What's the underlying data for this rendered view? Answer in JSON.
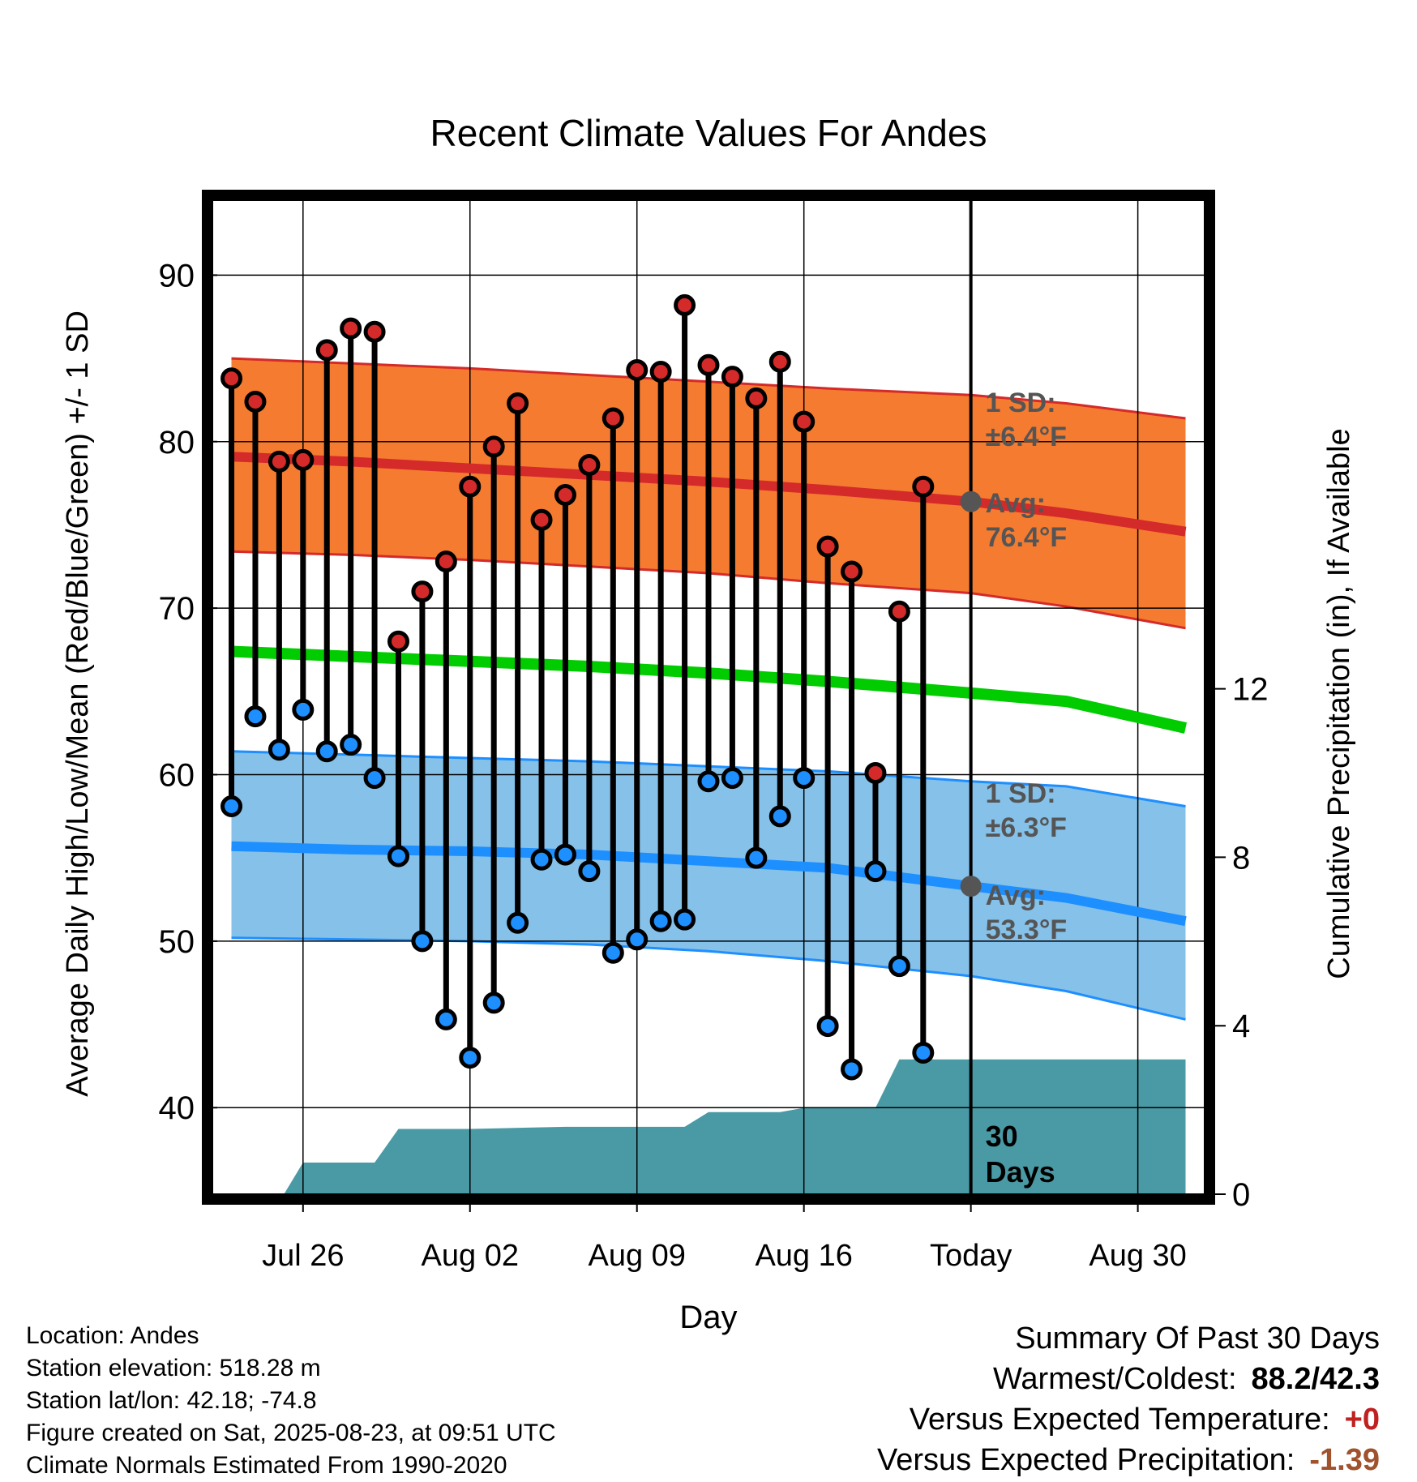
{
  "chart_data": {
    "type": "line",
    "title": "Recent Climate Values For Andes",
    "xlabel": "Day",
    "ylabel_left": "Average Daily High/Low/Mean (Red/Blue/Green) +/- 1 SD",
    "ylabel_right": "Cumulative Precipitation (in), If Available",
    "x_tick_labels": [
      "Jul 26",
      "Aug 02",
      "Aug 09",
      "Aug 16",
      "Today",
      "Aug 30"
    ],
    "x_tick_days": [
      3,
      10,
      17,
      24,
      31,
      38
    ],
    "today_day": 31,
    "xlim_days": [
      -0.8,
      40.8
    ],
    "y_left_ticks": [
      40,
      50,
      60,
      70,
      80,
      90
    ],
    "y_left_range": [
      34.8,
      94.5
    ],
    "y_right_ticks": [
      0,
      4,
      8,
      12
    ],
    "y_right_range": [
      0,
      23.6
    ],
    "grid": true,
    "colors": {
      "high_band": "#f47b30",
      "high_line": "#d42a2a",
      "low_band": "#85c1e9",
      "low_line": "#1e8fff",
      "mean_line": "#00cc00",
      "precip_fill": "#4a9aa5",
      "high_marker": "#d42a2a",
      "low_marker": "#1e8fff",
      "today_marker": "#555555",
      "annotation_text": "#555555"
    },
    "normals_days": [
      0,
      5,
      10,
      15,
      20,
      25,
      31,
      35,
      40
    ],
    "normal_high": [
      79.1,
      78.8,
      78.4,
      78.0,
      77.6,
      77.1,
      76.4,
      75.7,
      74.6
    ],
    "normal_high_upper": [
      85.0,
      84.7,
      84.4,
      84.0,
      83.6,
      83.2,
      82.8,
      82.3,
      81.4
    ],
    "normal_high_lower": [
      73.4,
      73.2,
      72.9,
      72.5,
      72.1,
      71.5,
      70.9,
      70.1,
      68.8
    ],
    "normal_mean": [
      67.4,
      67.1,
      66.8,
      66.5,
      66.1,
      65.6,
      64.9,
      64.4,
      62.8
    ],
    "normal_low": [
      55.7,
      55.5,
      55.4,
      55.2,
      54.8,
      54.4,
      53.3,
      52.6,
      51.2
    ],
    "normal_low_upper": [
      61.4,
      61.2,
      61.0,
      60.8,
      60.5,
      60.2,
      59.6,
      59.3,
      58.1
    ],
    "normal_low_lower": [
      50.2,
      50.1,
      50.0,
      49.8,
      49.4,
      48.8,
      47.9,
      47.0,
      45.3
    ],
    "observations": [
      {
        "day": 0,
        "high": 83.8,
        "low": 58.1
      },
      {
        "day": 1,
        "high": 82.4,
        "low": 63.5
      },
      {
        "day": 2,
        "high": 78.8,
        "low": 61.5
      },
      {
        "day": 3,
        "high": 78.9,
        "low": 63.9
      },
      {
        "day": 4,
        "high": 85.5,
        "low": 61.4
      },
      {
        "day": 5,
        "high": 86.8,
        "low": 61.8
      },
      {
        "day": 6,
        "high": 86.6,
        "low": 59.8
      },
      {
        "day": 7,
        "high": 68.0,
        "low": 55.1
      },
      {
        "day": 8,
        "high": 71.0,
        "low": 50.0
      },
      {
        "day": 9,
        "high": 72.8,
        "low": 45.3
      },
      {
        "day": 10,
        "high": 77.3,
        "low": 43.0
      },
      {
        "day": 11,
        "high": 79.7,
        "low": 46.3
      },
      {
        "day": 12,
        "high": 82.3,
        "low": 51.1
      },
      {
        "day": 13,
        "high": 75.3,
        "low": 54.9
      },
      {
        "day": 14,
        "high": 76.8,
        "low": 55.2
      },
      {
        "day": 15,
        "high": 78.6,
        "low": 54.2
      },
      {
        "day": 16,
        "high": 81.4,
        "low": 49.3
      },
      {
        "day": 17,
        "high": 84.3,
        "low": 50.1
      },
      {
        "day": 18,
        "high": 84.2,
        "low": 51.2
      },
      {
        "day": 19,
        "high": 88.2,
        "low": 51.3
      },
      {
        "day": 20,
        "high": 84.6,
        "low": 59.6
      },
      {
        "day": 21,
        "high": 83.9,
        "low": 59.8
      },
      {
        "day": 22,
        "high": 82.6,
        "low": 55.0
      },
      {
        "day": 23,
        "high": 84.8,
        "low": 57.5
      },
      {
        "day": 24,
        "high": 81.2,
        "low": 59.8
      },
      {
        "day": 25,
        "high": 73.7,
        "low": 44.9
      },
      {
        "day": 26,
        "high": 72.2,
        "low": 42.3
      },
      {
        "day": 27,
        "high": 60.1,
        "low": 54.2
      },
      {
        "day": 28,
        "high": 69.8,
        "low": 48.5
      },
      {
        "day": 29,
        "high": 77.3,
        "low": 43.3
      }
    ],
    "cumulative_precipitation": {
      "days": [
        2.2,
        3.0,
        5.0,
        6.0,
        7.0,
        7.0,
        10.0,
        14.0,
        19.0,
        20.0,
        23.0,
        24.0,
        27.0,
        28.0,
        40.0
      ],
      "values": [
        0.0,
        0.75,
        0.75,
        0.75,
        1.55,
        1.55,
        1.55,
        1.6,
        1.6,
        1.95,
        1.95,
        2.05,
        2.05,
        3.2,
        3.2
      ]
    },
    "annotations": {
      "high_sd": "1 SD:",
      "high_sd_value": "±6.4°F",
      "high_avg": "Avg:",
      "high_avg_value": "76.4°F",
      "low_sd": "1 SD:",
      "low_sd_value": "±6.3°F",
      "low_avg": "Avg:",
      "low_avg_value": "53.3°F",
      "window_label_1": "30",
      "window_label_2": "Days"
    }
  },
  "station": {
    "location": "Location: Andes",
    "elevation": "Station elevation: 518.28 m",
    "latlon": "Station lat/lon: 42.18; -74.8",
    "created": "Figure created on Sat, 2025-08-23, at 09:51 UTC",
    "normals": "Climate Normals Estimated From 1990-2020"
  },
  "summary": {
    "title": "Summary Of Past 30 Days",
    "warmest_coldest_label": "Warmest/Coldest:",
    "warmest_coldest_value": "88.2/42.3",
    "temp_label": "Versus Expected Temperature:",
    "temp_value": "+0",
    "precip_label": "Versus Expected Precipitation:",
    "precip_value": "-1.39"
  }
}
